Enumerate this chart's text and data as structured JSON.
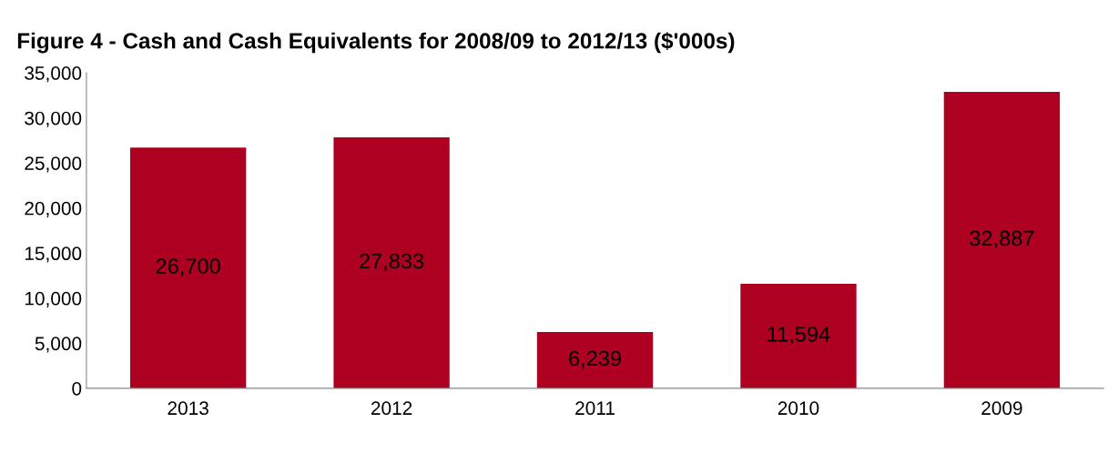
{
  "chart_data": {
    "type": "bar",
    "title": "Figure 4 - Cash and Cash Equivalents for 2008/09 to 2012/13 ($'000s)",
    "categories": [
      "2013",
      "2012",
      "2011",
      "2010",
      "2009"
    ],
    "values": [
      26700,
      27833,
      6239,
      11594,
      32887
    ],
    "color": "#ae0020",
    "value_labels": [
      "26,700",
      "27,833",
      "6,239",
      "11,594",
      "32,887"
    ],
    "ylim": [
      0,
      35000
    ],
    "yticks": [
      {
        "value": 0,
        "label": "0"
      },
      {
        "value": 5000,
        "label": "5,000"
      },
      {
        "value": 10000,
        "label": "10,000"
      },
      {
        "value": 15000,
        "label": "15,000"
      },
      {
        "value": 20000,
        "label": "20,000"
      },
      {
        "value": 25000,
        "label": "25,000"
      },
      {
        "value": 30000,
        "label": "30,000"
      },
      {
        "value": 35000,
        "label": "35,000"
      }
    ],
    "grid": false,
    "legend": false
  }
}
